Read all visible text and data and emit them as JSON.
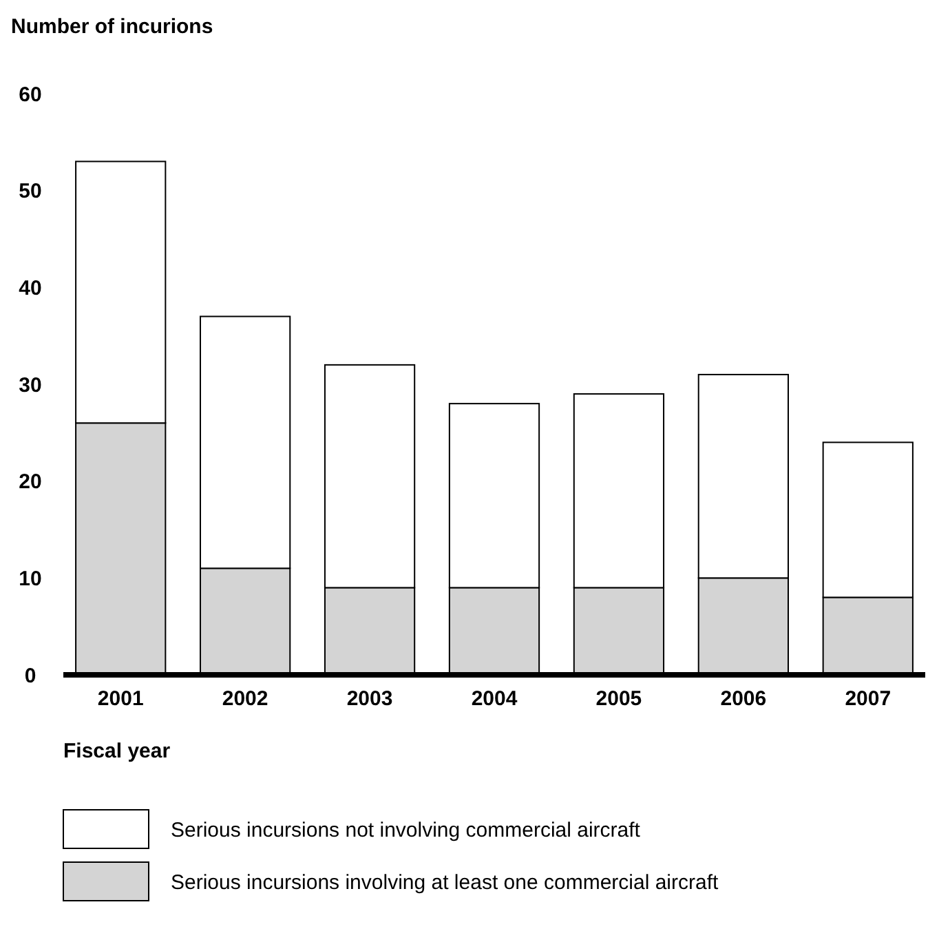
{
  "chart_data": {
    "type": "bar",
    "title": "Number of incurions",
    "xlabel": "Fiscal year",
    "categories": [
      "2001",
      "2002",
      "2003",
      "2004",
      "2005",
      "2006",
      "2007"
    ],
    "stacked": true,
    "ylim": [
      0,
      60
    ],
    "yticks": [
      0,
      10,
      20,
      30,
      40,
      50,
      60
    ],
    "grid": false,
    "legend": "bottom",
    "series": [
      {
        "name": "Serious incursions involving at least one commercial aircraft",
        "color": "#d4d4d4",
        "values": [
          26,
          11,
          9,
          9,
          9,
          10,
          8
        ]
      },
      {
        "name": "Serious incursions not involving commercial aircraft",
        "color": "#ffffff",
        "values": [
          27,
          26,
          23,
          19,
          20,
          21,
          16
        ]
      }
    ]
  }
}
